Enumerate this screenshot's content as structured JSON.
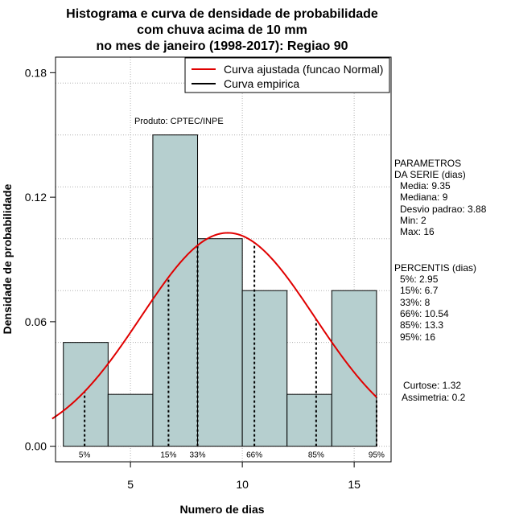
{
  "chart_data": {
    "type": "bar",
    "title_lines": [
      "Histograma e curva de densidade de probabilidade",
      "com chuva acima de 10 mm",
      "no mes de janeiro (1998-2017): Regiao 90"
    ],
    "xlabel": "Numero de dias",
    "ylabel": "Densidade de probabilidade",
    "xlim": [
      1.65,
      16.65
    ],
    "ylim": [
      -0.0075,
      0.1875
    ],
    "xticks": [
      5,
      10,
      15
    ],
    "yticks": [
      0.0,
      0.06,
      0.12,
      0.18
    ],
    "ytick_labels": [
      "0.00",
      "0.06",
      "0.12",
      "0.18"
    ],
    "grid": true,
    "bins": [
      {
        "x0": 2,
        "x1": 4,
        "density": 0.05
      },
      {
        "x0": 4,
        "x1": 6,
        "density": 0.025
      },
      {
        "x0": 6,
        "x1": 8,
        "density": 0.15
      },
      {
        "x0": 8,
        "x1": 10,
        "density": 0.1
      },
      {
        "x0": 10,
        "x1": 12,
        "density": 0.075
      },
      {
        "x0": 12,
        "x1": 14,
        "density": 0.025
      },
      {
        "x0": 14,
        "x1": 16,
        "density": 0.075
      }
    ],
    "normal_curve": {
      "mean": 9.35,
      "sd": 3.88
    },
    "colors": {
      "bar_fill": "#b6cfcf",
      "curve": "#e00000",
      "empirical": "#000000",
      "grid": "#b0b0b0"
    },
    "legend": {
      "position": "top-right",
      "entries": [
        {
          "label": "Curva ajustada (funcao Normal)",
          "color": "#e00000"
        },
        {
          "label": "Curva empirica",
          "color": "#000000"
        }
      ]
    },
    "product_label": "Produto: CPTEC/INPE",
    "percentile_marks": [
      {
        "x": 2.95,
        "label": "5%"
      },
      {
        "x": 6.7,
        "label": "15%"
      },
      {
        "x": 8,
        "label": "33%"
      },
      {
        "x": 10.54,
        "label": "66%"
      },
      {
        "x": 13.3,
        "label": "85%"
      },
      {
        "x": 16,
        "label": "95%"
      }
    ],
    "parametros": {
      "heading": [
        "PARAMETROS",
        "DA SERIE (dias)"
      ],
      "lines": [
        "Media: 9.35",
        "Mediana: 9",
        "Desvio padrao: 3.88",
        "Min: 2",
        "Max: 16"
      ]
    },
    "percentis": {
      "heading": "PERCENTIS (dias)",
      "lines": [
        "5%: 2.95",
        "15%: 6.7",
        "33%: 8",
        "66%: 10.54",
        "85%: 13.3",
        "95%: 16"
      ]
    },
    "stats": [
      "Curtose: 1.32",
      "Assimetria: 0.2"
    ]
  }
}
